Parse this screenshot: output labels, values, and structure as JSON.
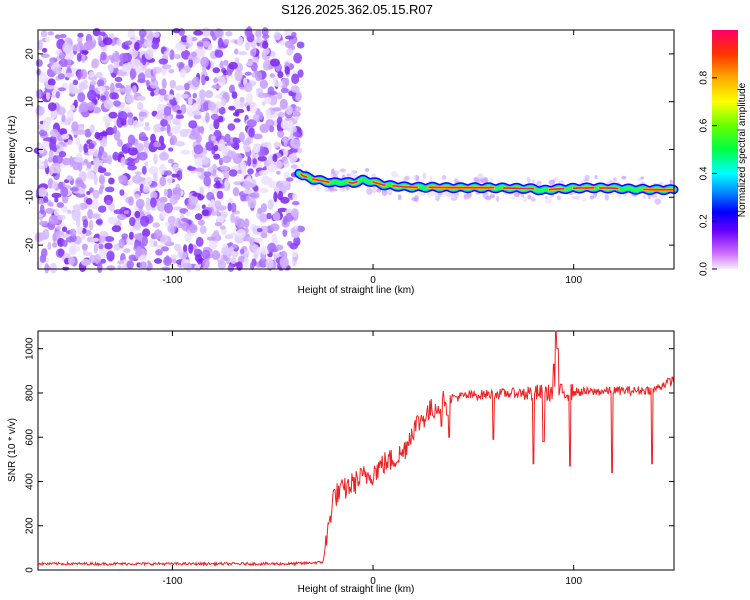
{
  "title": "S126.2025.362.05.15.R07",
  "chart_data": [
    {
      "type": "heatmap",
      "xlabel": "Height of straight line (km)",
      "ylabel": "Frequency (Hz)",
      "xlim": [
        -167,
        150
      ],
      "ylim": [
        -25,
        25
      ],
      "xticks": [
        -100,
        0,
        100
      ],
      "yticks": [
        -20,
        -10,
        0,
        10,
        20
      ],
      "colorbar": {
        "label": "Normalized spectral amplitude",
        "range": [
          0,
          1
        ],
        "ticks": [
          0,
          0.2,
          0.4,
          0.6,
          0.8
        ]
      },
      "noise_region_x": [
        -167,
        -38
      ],
      "signal_track": {
        "x": [
          -37,
          -35,
          -30,
          -25,
          -20,
          -15,
          -10,
          -5,
          0,
          5,
          10,
          15,
          20,
          30,
          40,
          50,
          60,
          70,
          80,
          84,
          90,
          100,
          110,
          120,
          130,
          140,
          150
        ],
        "freq": [
          -4.8,
          -5.5,
          -6.2,
          -6.6,
          -7.0,
          -6.8,
          -7.0,
          -6.4,
          -6.8,
          -7.4,
          -7.6,
          -7.8,
          -7.9,
          -7.9,
          -8.0,
          -8.0,
          -8.0,
          -8.1,
          -8.2,
          -8.6,
          -8.3,
          -8.1,
          -8.0,
          -8.1,
          -8.3,
          -8.4,
          -8.4
        ]
      }
    },
    {
      "type": "line",
      "xlabel": "Height of straight line (km)",
      "ylabel": "SNR (10 * v/v)",
      "xlim": [
        -167,
        150
      ],
      "ylim": [
        0,
        1080
      ],
      "xticks": [
        -100,
        0,
        100
      ],
      "yticks": [
        0,
        200,
        400,
        600,
        800,
        1000
      ],
      "series": [
        {
          "color": "#ee2222",
          "x": [
            -167,
            -40,
            -25,
            -22,
            -20,
            -15,
            -10,
            -5,
            0,
            5,
            10,
            15,
            20,
            25,
            30,
            35,
            40,
            50,
            60,
            70,
            80,
            90,
            100,
            110,
            120,
            130,
            140,
            145,
            150
          ],
          "values": [
            28,
            28,
            35,
            200,
            330,
            360,
            390,
            420,
            440,
            480,
            500,
            530,
            640,
            690,
            730,
            760,
            780,
            790,
            795,
            800,
            800,
            800,
            805,
            805,
            810,
            810,
            815,
            840,
            860
          ]
        }
      ],
      "dips": [
        [
          34,
          650
        ],
        [
          37,
          700
        ],
        [
          38,
          600
        ],
        [
          60,
          590
        ],
        [
          80,
          480
        ],
        [
          85,
          580
        ],
        [
          91,
          430
        ],
        [
          98,
          470
        ],
        [
          119,
          440
        ],
        [
          139,
          480
        ]
      ],
      "spikes": [
        [
          91,
          1080
        ],
        [
          92,
          1000
        ],
        [
          90,
          930
        ]
      ]
    }
  ]
}
